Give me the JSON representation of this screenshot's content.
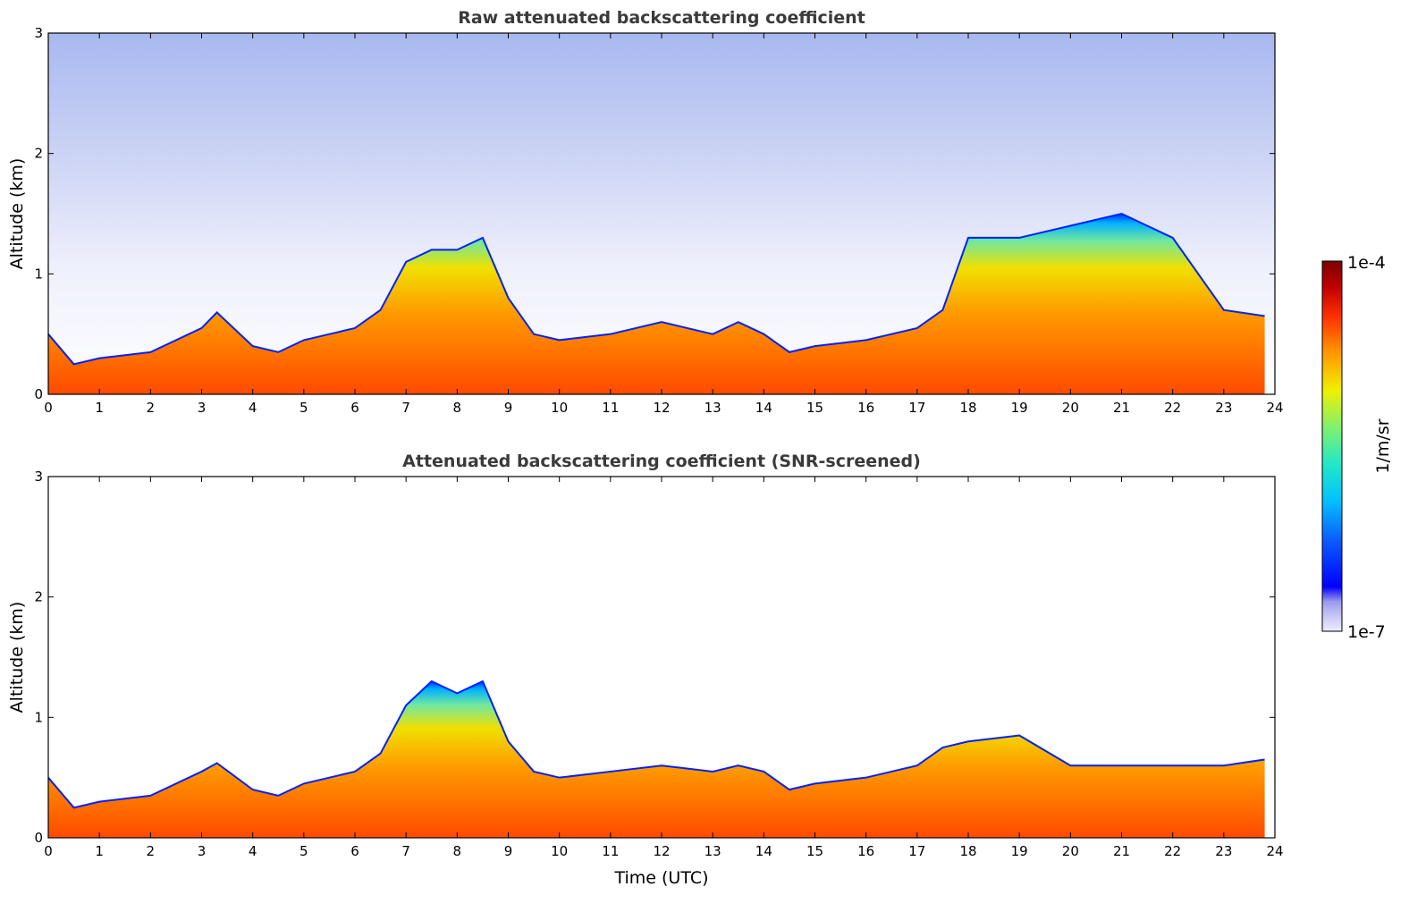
{
  "chart_data": [
    {
      "type": "heatmap",
      "title": "Raw attenuated backscattering coefficient",
      "xlabel": "",
      "ylabel": "Altitude (km)",
      "xlim": [
        0,
        24
      ],
      "ylim": [
        0,
        3
      ],
      "xticks": [
        "0",
        "1",
        "2",
        "3",
        "4",
        "5",
        "6",
        "7",
        "8",
        "9",
        "10",
        "11",
        "12",
        "13",
        "14",
        "15",
        "16",
        "17",
        "18",
        "19",
        "20",
        "21",
        "22",
        "23",
        "24"
      ],
      "yticks": [
        "0",
        "1",
        "2",
        "3"
      ],
      "boundary_layer_top_km": {
        "x": [
          0,
          0.5,
          1,
          2,
          3,
          3.3,
          4,
          4.5,
          5,
          5.5,
          6,
          6.5,
          7,
          7.5,
          8,
          8.5,
          9,
          9.5,
          10,
          11,
          12,
          13,
          13.5,
          14,
          14.5,
          15,
          16,
          17,
          17.5,
          18,
          19,
          20,
          21,
          22,
          23,
          23.8
        ],
        "y": [
          0.5,
          0.25,
          0.3,
          0.35,
          0.55,
          0.68,
          0.4,
          0.35,
          0.45,
          0.5,
          0.55,
          0.7,
          1.1,
          1.2,
          1.2,
          1.3,
          0.8,
          0.5,
          0.45,
          0.5,
          0.6,
          0.5,
          0.6,
          0.5,
          0.35,
          0.4,
          0.45,
          0.55,
          0.7,
          1.3,
          1.3,
          1.4,
          1.5,
          1.3,
          0.7,
          0.65
        ]
      }
    },
    {
      "type": "heatmap",
      "title": "Attenuated backscattering coefficient (SNR-screened)",
      "xlabel": "Time (UTC)",
      "ylabel": "Altitude (km)",
      "xlim": [
        0,
        24
      ],
      "ylim": [
        0,
        3
      ],
      "xticks": [
        "0",
        "1",
        "2",
        "3",
        "4",
        "5",
        "6",
        "7",
        "8",
        "9",
        "10",
        "11",
        "12",
        "13",
        "14",
        "15",
        "16",
        "17",
        "18",
        "19",
        "20",
        "21",
        "22",
        "23",
        "24"
      ],
      "yticks": [
        "0",
        "1",
        "2",
        "3"
      ],
      "boundary_layer_top_km": {
        "x": [
          0,
          0.5,
          1,
          2,
          3,
          3.3,
          4,
          4.5,
          5,
          5.5,
          6,
          6.5,
          7,
          7.5,
          8,
          8.5,
          9,
          9.5,
          10,
          11,
          12,
          13,
          13.5,
          14,
          14.5,
          15,
          16,
          17,
          17.5,
          18,
          19,
          20,
          21,
          22,
          23,
          23.8
        ],
        "y": [
          0.5,
          0.25,
          0.3,
          0.35,
          0.55,
          0.62,
          0.4,
          0.35,
          0.45,
          0.5,
          0.55,
          0.7,
          1.1,
          1.3,
          1.2,
          1.3,
          0.8,
          0.55,
          0.5,
          0.55,
          0.6,
          0.55,
          0.6,
          0.55,
          0.4,
          0.45,
          0.5,
          0.6,
          0.75,
          0.8,
          0.85,
          0.6,
          0.6,
          0.6,
          0.6,
          0.65
        ]
      }
    }
  ],
  "colorbar": {
    "max_label": "1e-4",
    "min_label": "1e-7",
    "unit_label": "1/m/sr",
    "colors": [
      "#ececfb",
      "#c8c8f5",
      "#9a9aee",
      "#0000ff",
      "#0a60ff",
      "#00c0ff",
      "#20e8c8",
      "#80f070",
      "#f0f000",
      "#ff9a00",
      "#ff3000",
      "#c00000",
      "#7a0000"
    ]
  }
}
